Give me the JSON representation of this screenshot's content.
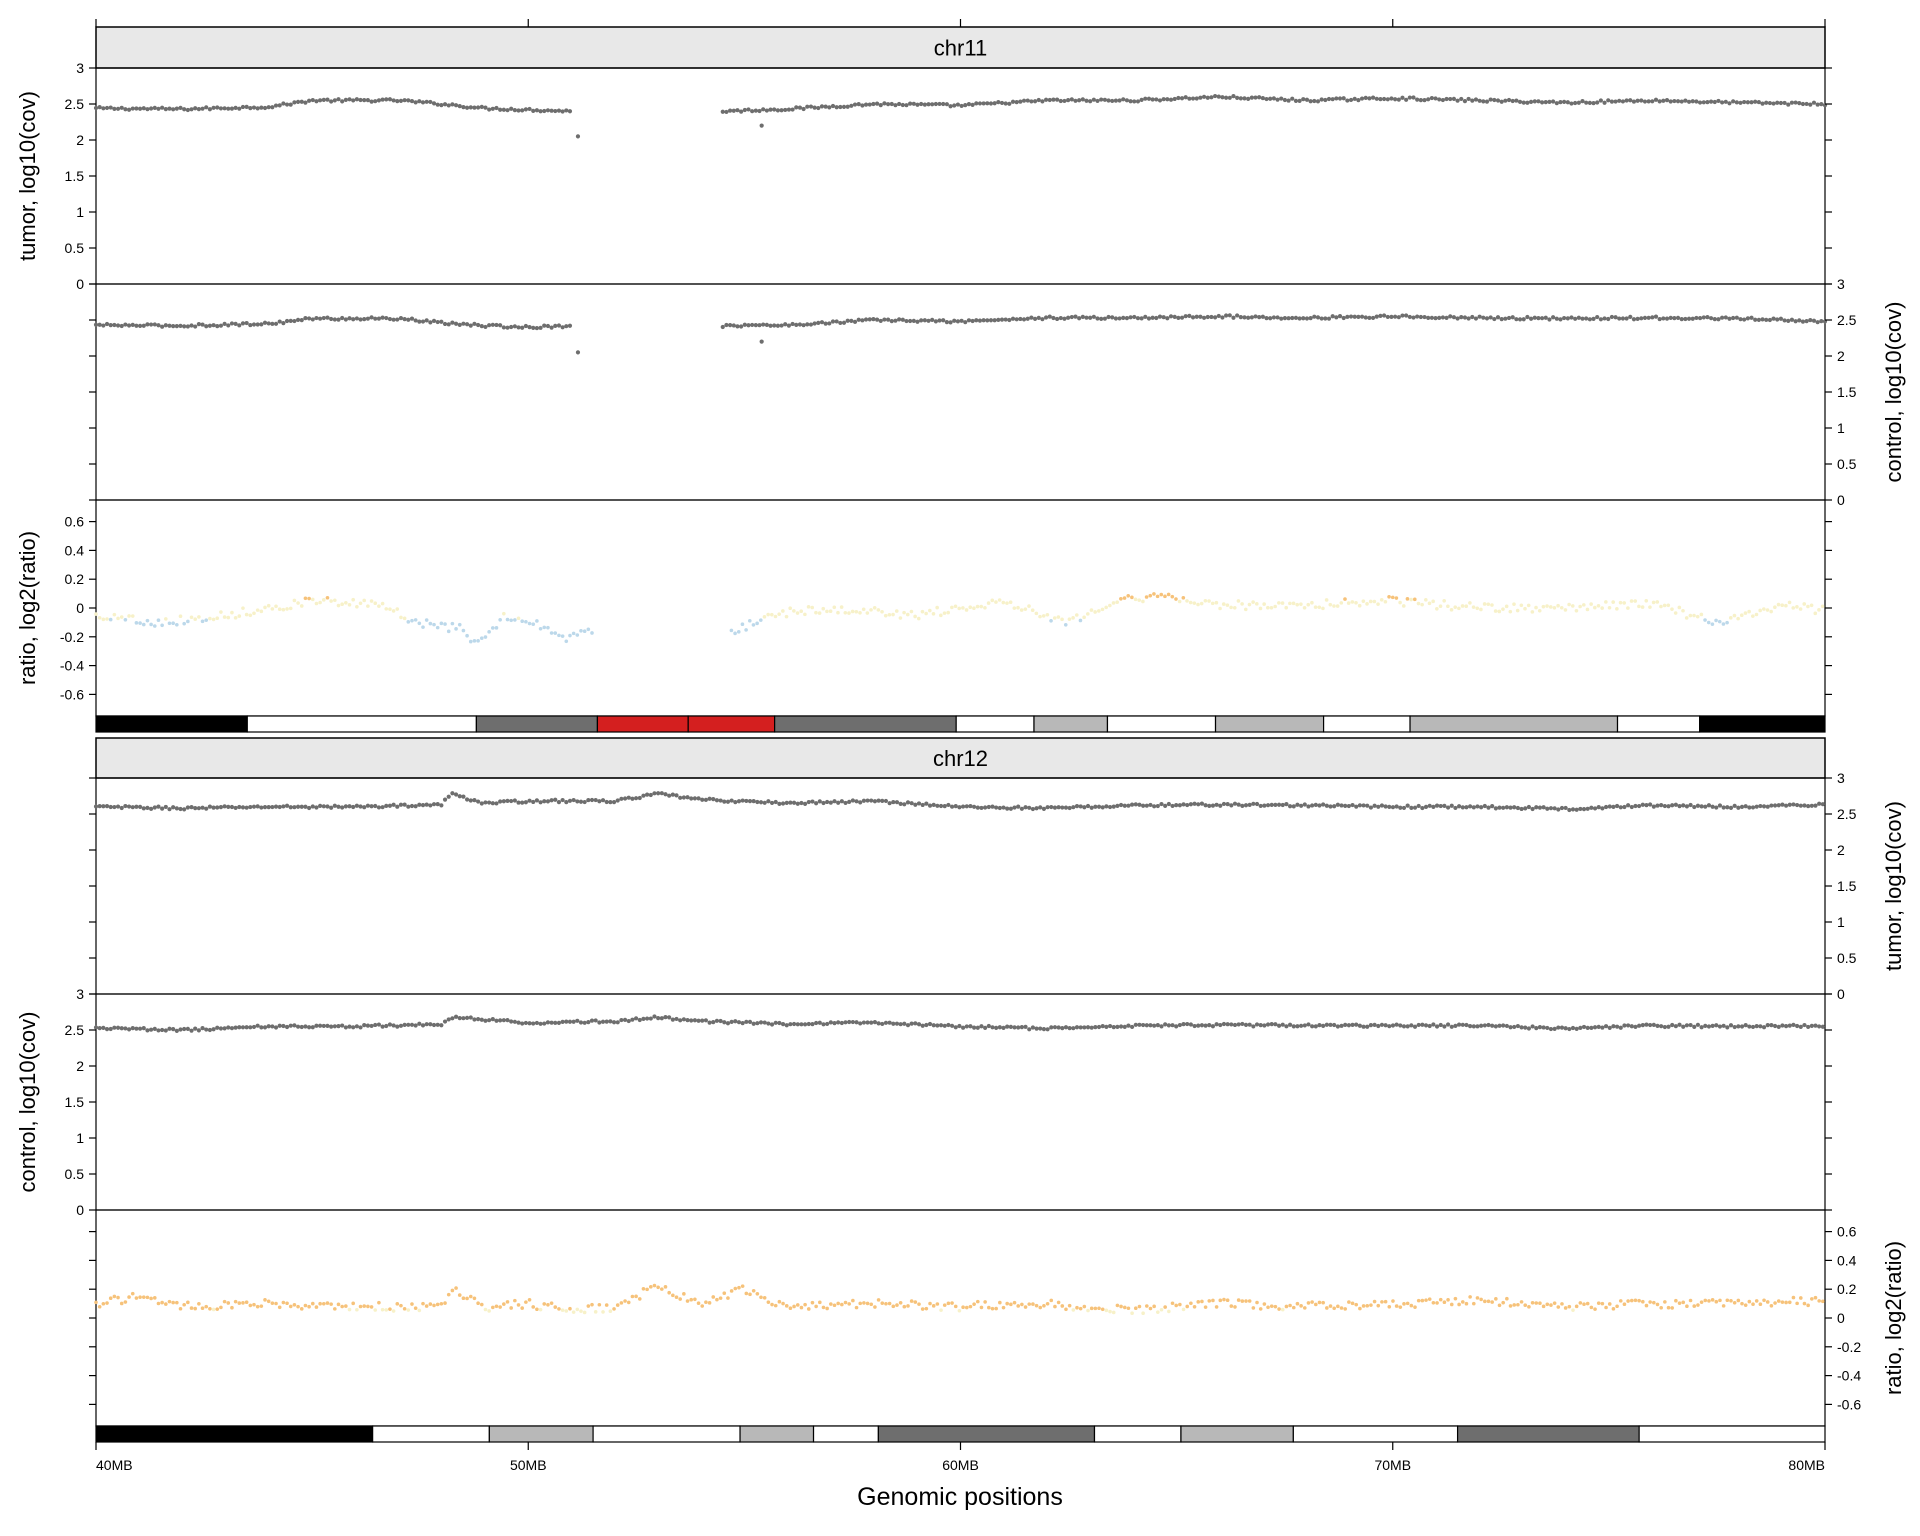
{
  "chart_data": {
    "type": "scatter",
    "xlabel": "Genomic positions",
    "x_axis": {
      "range": [
        40,
        80
      ],
      "ticks": [
        40,
        50,
        60,
        70,
        80
      ],
      "tick_labels": [
        "40MB",
        "50MB",
        "60MB",
        "70MB",
        "80MB"
      ]
    },
    "colors": {
      "coverage_points": "#6e6e6e",
      "ratio_gain": "#f6c27a",
      "ratio_neutral": "#f7f1c9",
      "ratio_loss": "#bcd8ea",
      "strip_fill": "#e8e8e8",
      "centromere": "#d41f1f",
      "gvar": "#6e6e6e"
    },
    "panels": [
      {
        "strip": "chr11",
        "tracks": [
          {
            "name": "tumor",
            "ylabel": "tumor, log10(cov)",
            "axis_side": "left",
            "ylim": [
              0,
              3
            ],
            "ticks": [
              0,
              0.5,
              1,
              1.5,
              2,
              2.5,
              3
            ],
            "tick_labels": [
              "0",
              "0.5",
              "1",
              "1.5",
              "2",
              "2.5",
              "3"
            ],
            "profile": [
              [
                40,
                2.44
              ],
              [
                42,
                2.43
              ],
              [
                44,
                2.46
              ],
              [
                45,
                2.55
              ],
              [
                47,
                2.55
              ],
              [
                48,
                2.5
              ],
              [
                49,
                2.44
              ],
              [
                50,
                2.42
              ],
              [
                51,
                2.4
              ]
            ],
            "profile2": [
              [
                54.5,
                2.4
              ],
              [
                56,
                2.43
              ],
              [
                58,
                2.5
              ],
              [
                60,
                2.48
              ],
              [
                62,
                2.55
              ],
              [
                64,
                2.55
              ],
              [
                66,
                2.6
              ],
              [
                68,
                2.55
              ],
              [
                70,
                2.58
              ],
              [
                72,
                2.55
              ],
              [
                74,
                2.52
              ],
              [
                76,
                2.55
              ],
              [
                78,
                2.52
              ],
              [
                80,
                2.5
              ]
            ],
            "outliers": [
              [
                51.15,
                2.05
              ],
              [
                55.4,
                2.2
              ]
            ]
          },
          {
            "name": "control",
            "ylabel": "control, log10(cov)",
            "axis_side": "right",
            "ylim": [
              0,
              3
            ],
            "ticks": [
              0,
              0.5,
              1,
              1.5,
              2,
              2.5,
              3
            ],
            "tick_labels": [
              "0",
              "0.5",
              "1",
              "1.5",
              "2",
              "2.5",
              "3"
            ],
            "profile": [
              [
                40,
                2.43
              ],
              [
                42,
                2.42
              ],
              [
                44,
                2.45
              ],
              [
                45,
                2.52
              ],
              [
                47,
                2.52
              ],
              [
                48,
                2.46
              ],
              [
                49,
                2.42
              ],
              [
                50,
                2.4
              ],
              [
                51,
                2.42
              ]
            ],
            "profile2": [
              [
                54.5,
                2.42
              ],
              [
                56,
                2.43
              ],
              [
                58,
                2.5
              ],
              [
                60,
                2.48
              ],
              [
                62,
                2.53
              ],
              [
                64,
                2.53
              ],
              [
                66,
                2.55
              ],
              [
                68,
                2.53
              ],
              [
                70,
                2.55
              ],
              [
                72,
                2.53
              ],
              [
                74,
                2.52
              ],
              [
                76,
                2.53
              ],
              [
                78,
                2.52
              ],
              [
                80,
                2.48
              ]
            ],
            "outliers": [
              [
                51.15,
                2.05
              ],
              [
                55.4,
                2.2
              ]
            ]
          },
          {
            "name": "ratio",
            "ylabel": "ratio, log2(ratio)",
            "axis_side": "left",
            "ylim": [
              -0.75,
              0.75
            ],
            "ticks": [
              -0.6,
              -0.4,
              -0.2,
              0,
              0.2,
              0.4,
              0.6
            ],
            "tick_labels": [
              "-0.6",
              "-0.4",
              "-0.2",
              "0",
              "0.2",
              "0.4",
              "0.6"
            ],
            "profile": [
              [
                40,
                -0.05
              ],
              [
                41.5,
                -0.1
              ],
              [
                43,
                -0.05
              ],
              [
                45,
                0.05
              ],
              [
                46.5,
                0.02
              ],
              [
                47.5,
                -0.1
              ],
              [
                48.5,
                -0.15
              ],
              [
                48.8,
                -0.25
              ],
              [
                49.5,
                -0.05
              ],
              [
                50.2,
                -0.1
              ],
              [
                50.7,
                -0.22
              ],
              [
                51.5,
                -0.15
              ]
            ],
            "profile2": [
              [
                54.7,
                -0.18
              ],
              [
                55.5,
                -0.05
              ],
              [
                57,
                0
              ],
              [
                59,
                -0.05
              ],
              [
                61,
                0.05
              ],
              [
                62.5,
                -0.1
              ],
              [
                63.5,
                0.05
              ],
              [
                64.5,
                0.08
              ],
              [
                66,
                0.02
              ],
              [
                68,
                0.02
              ],
              [
                70,
                0.05
              ],
              [
                72,
                0
              ],
              [
                74,
                0
              ],
              [
                76,
                0.03
              ],
              [
                77.5,
                -0.1
              ],
              [
                79,
                0.02
              ],
              [
                80,
                -0.02
              ]
            ]
          }
        ],
        "bands": [
          {
            "start": 40,
            "end": 43.5,
            "stain": "gpos100"
          },
          {
            "start": 43.5,
            "end": 48.8,
            "stain": "gneg"
          },
          {
            "start": 48.8,
            "end": 51.6,
            "stain": "gpos75"
          },
          {
            "start": 51.6,
            "end": 53.7,
            "stain": "acen"
          },
          {
            "start": 53.7,
            "end": 55.7,
            "stain": "acen"
          },
          {
            "start": 55.7,
            "end": 59.9,
            "stain": "gpos75"
          },
          {
            "start": 59.9,
            "end": 61.7,
            "stain": "gneg"
          },
          {
            "start": 61.7,
            "end": 63.4,
            "stain": "gpos25"
          },
          {
            "start": 63.4,
            "end": 65.9,
            "stain": "gneg"
          },
          {
            "start": 65.9,
            "end": 68.4,
            "stain": "gpos25"
          },
          {
            "start": 68.4,
            "end": 70.4,
            "stain": "gneg"
          },
          {
            "start": 70.4,
            "end": 75.2,
            "stain": "gpos25"
          },
          {
            "start": 75.2,
            "end": 77.1,
            "stain": "gneg"
          },
          {
            "start": 77.1,
            "end": 80,
            "stain": "gpos100"
          }
        ]
      },
      {
        "strip": "chr12",
        "tracks": [
          {
            "name": "tumor",
            "ylabel": "tumor, log10(cov)",
            "axis_side": "right",
            "ylim": [
              0,
              3
            ],
            "ticks": [
              0,
              0.5,
              1,
              1.5,
              2,
              2.5,
              3
            ],
            "tick_labels": [
              "0",
              "0.5",
              "1",
              "1.5",
              "2",
              "2.5",
              "3"
            ],
            "profile": [
              [
                40,
                2.6
              ],
              [
                42,
                2.58
              ],
              [
                44,
                2.6
              ],
              [
                46,
                2.6
              ],
              [
                48,
                2.63
              ],
              [
                48.2,
                2.78
              ],
              [
                49,
                2.65
              ],
              [
                50,
                2.68
              ],
              [
                52,
                2.68
              ],
              [
                53,
                2.78
              ],
              [
                54,
                2.7
              ],
              [
                56,
                2.65
              ],
              [
                58,
                2.68
              ],
              [
                60,
                2.6
              ],
              [
                62,
                2.58
              ],
              [
                64,
                2.62
              ],
              [
                66,
                2.63
              ],
              [
                68,
                2.62
              ],
              [
                70,
                2.6
              ],
              [
                72,
                2.6
              ],
              [
                74,
                2.57
              ],
              [
                76,
                2.62
              ],
              [
                78,
                2.6
              ],
              [
                80,
                2.63
              ]
            ]
          },
          {
            "name": "control",
            "ylabel": "control, log10(cov)",
            "axis_side": "left",
            "ylim": [
              0,
              3
            ],
            "ticks": [
              0,
              0.5,
              1,
              1.5,
              2,
              2.5,
              3
            ],
            "tick_labels": [
              "0",
              "0.5",
              "1",
              "1.5",
              "2",
              "2.5",
              "3"
            ],
            "profile": [
              [
                40,
                2.53
              ],
              [
                42,
                2.5
              ],
              [
                44,
                2.55
              ],
              [
                46,
                2.55
              ],
              [
                48,
                2.58
              ],
              [
                48.2,
                2.68
              ],
              [
                50,
                2.6
              ],
              [
                52,
                2.62
              ],
              [
                53,
                2.68
              ],
              [
                54,
                2.62
              ],
              [
                56,
                2.58
              ],
              [
                58,
                2.6
              ],
              [
                60,
                2.55
              ],
              [
                62,
                2.52
              ],
              [
                64,
                2.56
              ],
              [
                66,
                2.57
              ],
              [
                68,
                2.56
              ],
              [
                70,
                2.56
              ],
              [
                72,
                2.56
              ],
              [
                74,
                2.52
              ],
              [
                76,
                2.56
              ],
              [
                78,
                2.55
              ],
              [
                80,
                2.56
              ]
            ]
          },
          {
            "name": "ratio",
            "ylabel": "ratio, log2(ratio)",
            "axis_side": "right",
            "ylim": [
              -0.75,
              0.75
            ],
            "ticks": [
              -0.6,
              -0.4,
              -0.2,
              0,
              0.2,
              0.4,
              0.6
            ],
            "tick_labels": [
              "-0.6",
              "-0.4",
              "-0.2",
              "0",
              "0.2",
              "0.4",
              "0.6"
            ],
            "profile": [
              [
                40,
                0.1
              ],
              [
                41,
                0.15
              ],
              [
                42,
                0.08
              ],
              [
                44,
                0.1
              ],
              [
                46,
                0.08
              ],
              [
                48,
                0.07
              ],
              [
                48.2,
                0.22
              ],
              [
                49,
                0.07
              ],
              [
                50,
                0.1
              ],
              [
                51,
                0.05
              ],
              [
                52,
                0.08
              ],
              [
                53,
                0.22
              ],
              [
                54,
                0.1
              ],
              [
                55,
                0.2
              ],
              [
                56,
                0.08
              ],
              [
                58,
                0.1
              ],
              [
                60,
                0.08
              ],
              [
                62,
                0.1
              ],
              [
                64,
                0.05
              ],
              [
                66,
                0.1
              ],
              [
                68,
                0.08
              ],
              [
                70,
                0.1
              ],
              [
                72,
                0.12
              ],
              [
                74,
                0.08
              ],
              [
                76,
                0.1
              ],
              [
                78,
                0.1
              ],
              [
                80,
                0.12
              ]
            ]
          }
        ],
        "bands": [
          {
            "start": 40,
            "end": 46.4,
            "stain": "gpos100"
          },
          {
            "start": 46.4,
            "end": 49.1,
            "stain": "gneg"
          },
          {
            "start": 49.1,
            "end": 51.5,
            "stain": "gpos25"
          },
          {
            "start": 51.5,
            "end": 54.9,
            "stain": "gneg"
          },
          {
            "start": 54.9,
            "end": 56.6,
            "stain": "gpos25"
          },
          {
            "start": 56.6,
            "end": 58.1,
            "stain": "gneg"
          },
          {
            "start": 58.1,
            "end": 63.1,
            "stain": "gpos75"
          },
          {
            "start": 63.1,
            "end": 65.1,
            "stain": "gneg"
          },
          {
            "start": 65.1,
            "end": 67.7,
            "stain": "gpos25"
          },
          {
            "start": 67.7,
            "end": 71.5,
            "stain": "gneg"
          },
          {
            "start": 71.5,
            "end": 75.7,
            "stain": "gpos75"
          },
          {
            "start": 75.7,
            "end": 80,
            "stain": "gneg"
          }
        ]
      }
    ]
  }
}
